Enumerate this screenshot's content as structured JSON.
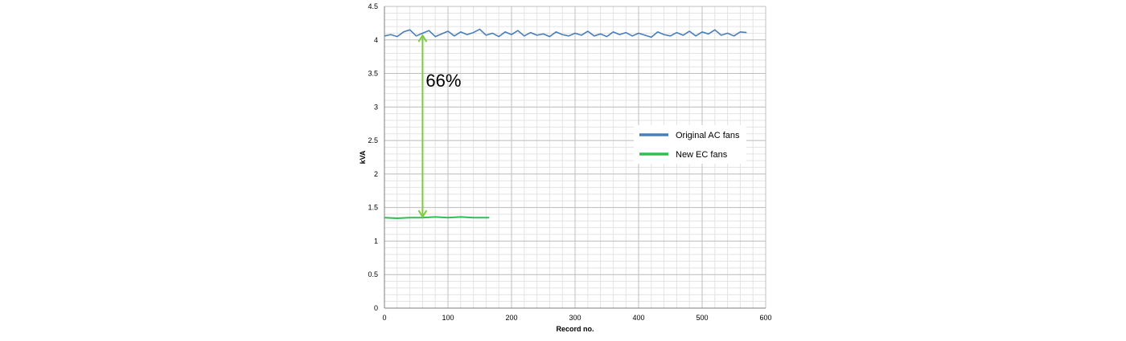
{
  "chart_data": {
    "type": "line",
    "title": "",
    "xlabel": "Record no.",
    "ylabel": "kVA",
    "xlim": [
      0,
      600
    ],
    "ylim": [
      0,
      4.5
    ],
    "x_ticks": [
      0,
      100,
      200,
      300,
      400,
      500,
      600
    ],
    "x_tick_labels": [
      "0",
      "100",
      "200",
      "300",
      "400",
      "500",
      "600"
    ],
    "y_ticks": [
      0,
      0.5,
      1,
      1.5,
      2,
      2.5,
      3,
      3.5,
      4,
      4.5
    ],
    "y_tick_labels": [
      "0",
      "0.5",
      "1",
      "1.5",
      "2",
      "2.5",
      "3",
      "3.5",
      "4",
      "4.5"
    ],
    "grid": true,
    "legend_position": "right-center",
    "series": [
      {
        "name": "Original AC fans",
        "color": "#4a7ebb",
        "x": [
          0,
          10,
          20,
          30,
          40,
          50,
          60,
          70,
          80,
          90,
          100,
          110,
          120,
          130,
          140,
          150,
          160,
          170,
          180,
          190,
          200,
          210,
          220,
          230,
          240,
          250,
          260,
          270,
          280,
          290,
          300,
          310,
          320,
          330,
          340,
          350,
          360,
          370,
          380,
          390,
          400,
          410,
          420,
          430,
          440,
          450,
          460,
          470,
          480,
          490,
          500,
          510,
          520,
          530,
          540,
          550,
          560,
          570
        ],
        "y": [
          4.06,
          4.08,
          4.05,
          4.12,
          4.15,
          4.06,
          4.1,
          4.14,
          4.05,
          4.09,
          4.13,
          4.06,
          4.12,
          4.08,
          4.11,
          4.16,
          4.07,
          4.1,
          4.05,
          4.12,
          4.08,
          4.14,
          4.06,
          4.11,
          4.07,
          4.09,
          4.05,
          4.12,
          4.08,
          4.06,
          4.1,
          4.07,
          4.13,
          4.06,
          4.09,
          4.05,
          4.12,
          4.08,
          4.11,
          4.06,
          4.1,
          4.07,
          4.04,
          4.12,
          4.08,
          4.06,
          4.11,
          4.07,
          4.13,
          4.06,
          4.12,
          4.09,
          4.15,
          4.07,
          4.1,
          4.06,
          4.12,
          4.11
        ]
      },
      {
        "name": "New EC fans",
        "color": "#2fbf4f",
        "x": [
          0,
          20,
          40,
          60,
          80,
          100,
          120,
          140,
          165
        ],
        "y": [
          1.35,
          1.34,
          1.35,
          1.35,
          1.36,
          1.35,
          1.36,
          1.35,
          1.35
        ]
      }
    ],
    "annotations": [
      {
        "text": "66%",
        "type": "double-arrow",
        "color": "#7dcc3f",
        "x": 60,
        "y_from": 1.35,
        "y_to": 4.08
      }
    ]
  }
}
